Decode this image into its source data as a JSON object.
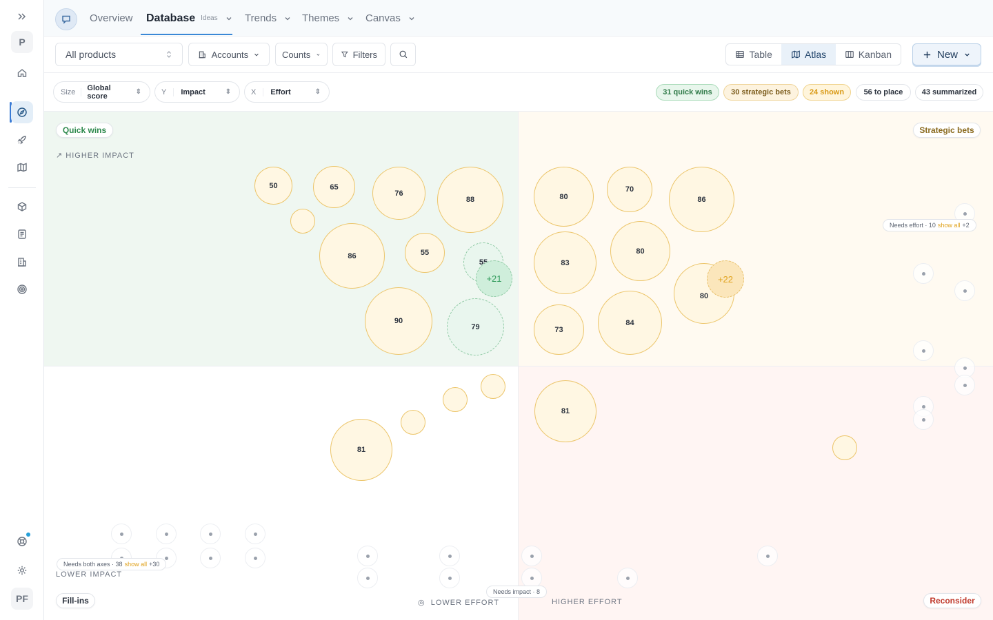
{
  "rail": {
    "items": [
      {
        "name": "expand-icon"
      },
      {
        "name": "workspace-avatar",
        "label": "P"
      },
      {
        "name": "home-icon"
      },
      {
        "name": "compass-icon"
      },
      {
        "name": "rocket-icon"
      },
      {
        "name": "map-icon"
      },
      {
        "name": "cube-icon"
      },
      {
        "name": "document-icon"
      },
      {
        "name": "building-icon"
      },
      {
        "name": "target-icon"
      },
      {
        "name": "help-icon"
      },
      {
        "name": "settings-icon"
      }
    ],
    "user_initials": "PF",
    "notification_color": "#27a0d8"
  },
  "nav": {
    "tabs": [
      {
        "label": "Overview"
      },
      {
        "label": "Database",
        "sub": "Ideas"
      },
      {
        "label": "Trends"
      },
      {
        "label": "Themes"
      },
      {
        "label": "Canvas"
      }
    ]
  },
  "toolbar": {
    "product_select": "All products",
    "accounts": "Accounts",
    "counts": "Counts",
    "filters": "Filters",
    "views": [
      "Table",
      "Atlas",
      "Kanban"
    ],
    "active_view": "Atlas",
    "new_label": "New"
  },
  "axes": {
    "size": {
      "key": "Size",
      "value": "Global score"
    },
    "y": {
      "key": "Y",
      "value": "Impact"
    },
    "x": {
      "key": "X",
      "value": "Effort"
    }
  },
  "stats": {
    "quick_wins": "31 quick wins",
    "strategic_bets": "30 strategic bets",
    "shown": "24 shown",
    "to_place": "56 to place",
    "summarized": "43 summarized"
  },
  "quadrants": {
    "quick_wins": "Quick wins",
    "strategic_bets": "Strategic bets",
    "fill_ins": "Fill-ins",
    "reconsider": "Reconsider"
  },
  "axis_labels": {
    "higher_impact": "HIGHER IMPACT",
    "lower_impact": "LOWER IMPACT",
    "lower_effort": "LOWER EFFORT",
    "higher_effort": "HIGHER EFFORT"
  },
  "tags": {
    "needs_effort": {
      "text": "Needs effort · 10",
      "link": "show all",
      "extra": "+2"
    },
    "needs_both": {
      "text": "Needs both axes · 38",
      "link": "show all",
      "extra": "+30"
    },
    "needs_impact": {
      "text": "Needs impact · 8"
    }
  },
  "bubbles": {
    "b50": "50",
    "b65": "65",
    "b76": "76",
    "b88": "88",
    "b86a": "86",
    "b55a": "55",
    "b55b": "55",
    "b21": "+21",
    "b90": "90",
    "b79": "79",
    "b80a": "80",
    "b70": "70",
    "b86b": "86",
    "b83": "83",
    "b80b": "80",
    "b80c": "80",
    "b22": "+22",
    "b73": "73",
    "b84": "84",
    "b81a": "81",
    "b81b": "81"
  },
  "colors": {
    "quick_wins_bg": "#eff7f1",
    "strategic_bg": "#fffaf1",
    "reconsider_bg": "#fff5f3",
    "accent": "#3a88d6",
    "bubble_border": "#ecc56a"
  }
}
